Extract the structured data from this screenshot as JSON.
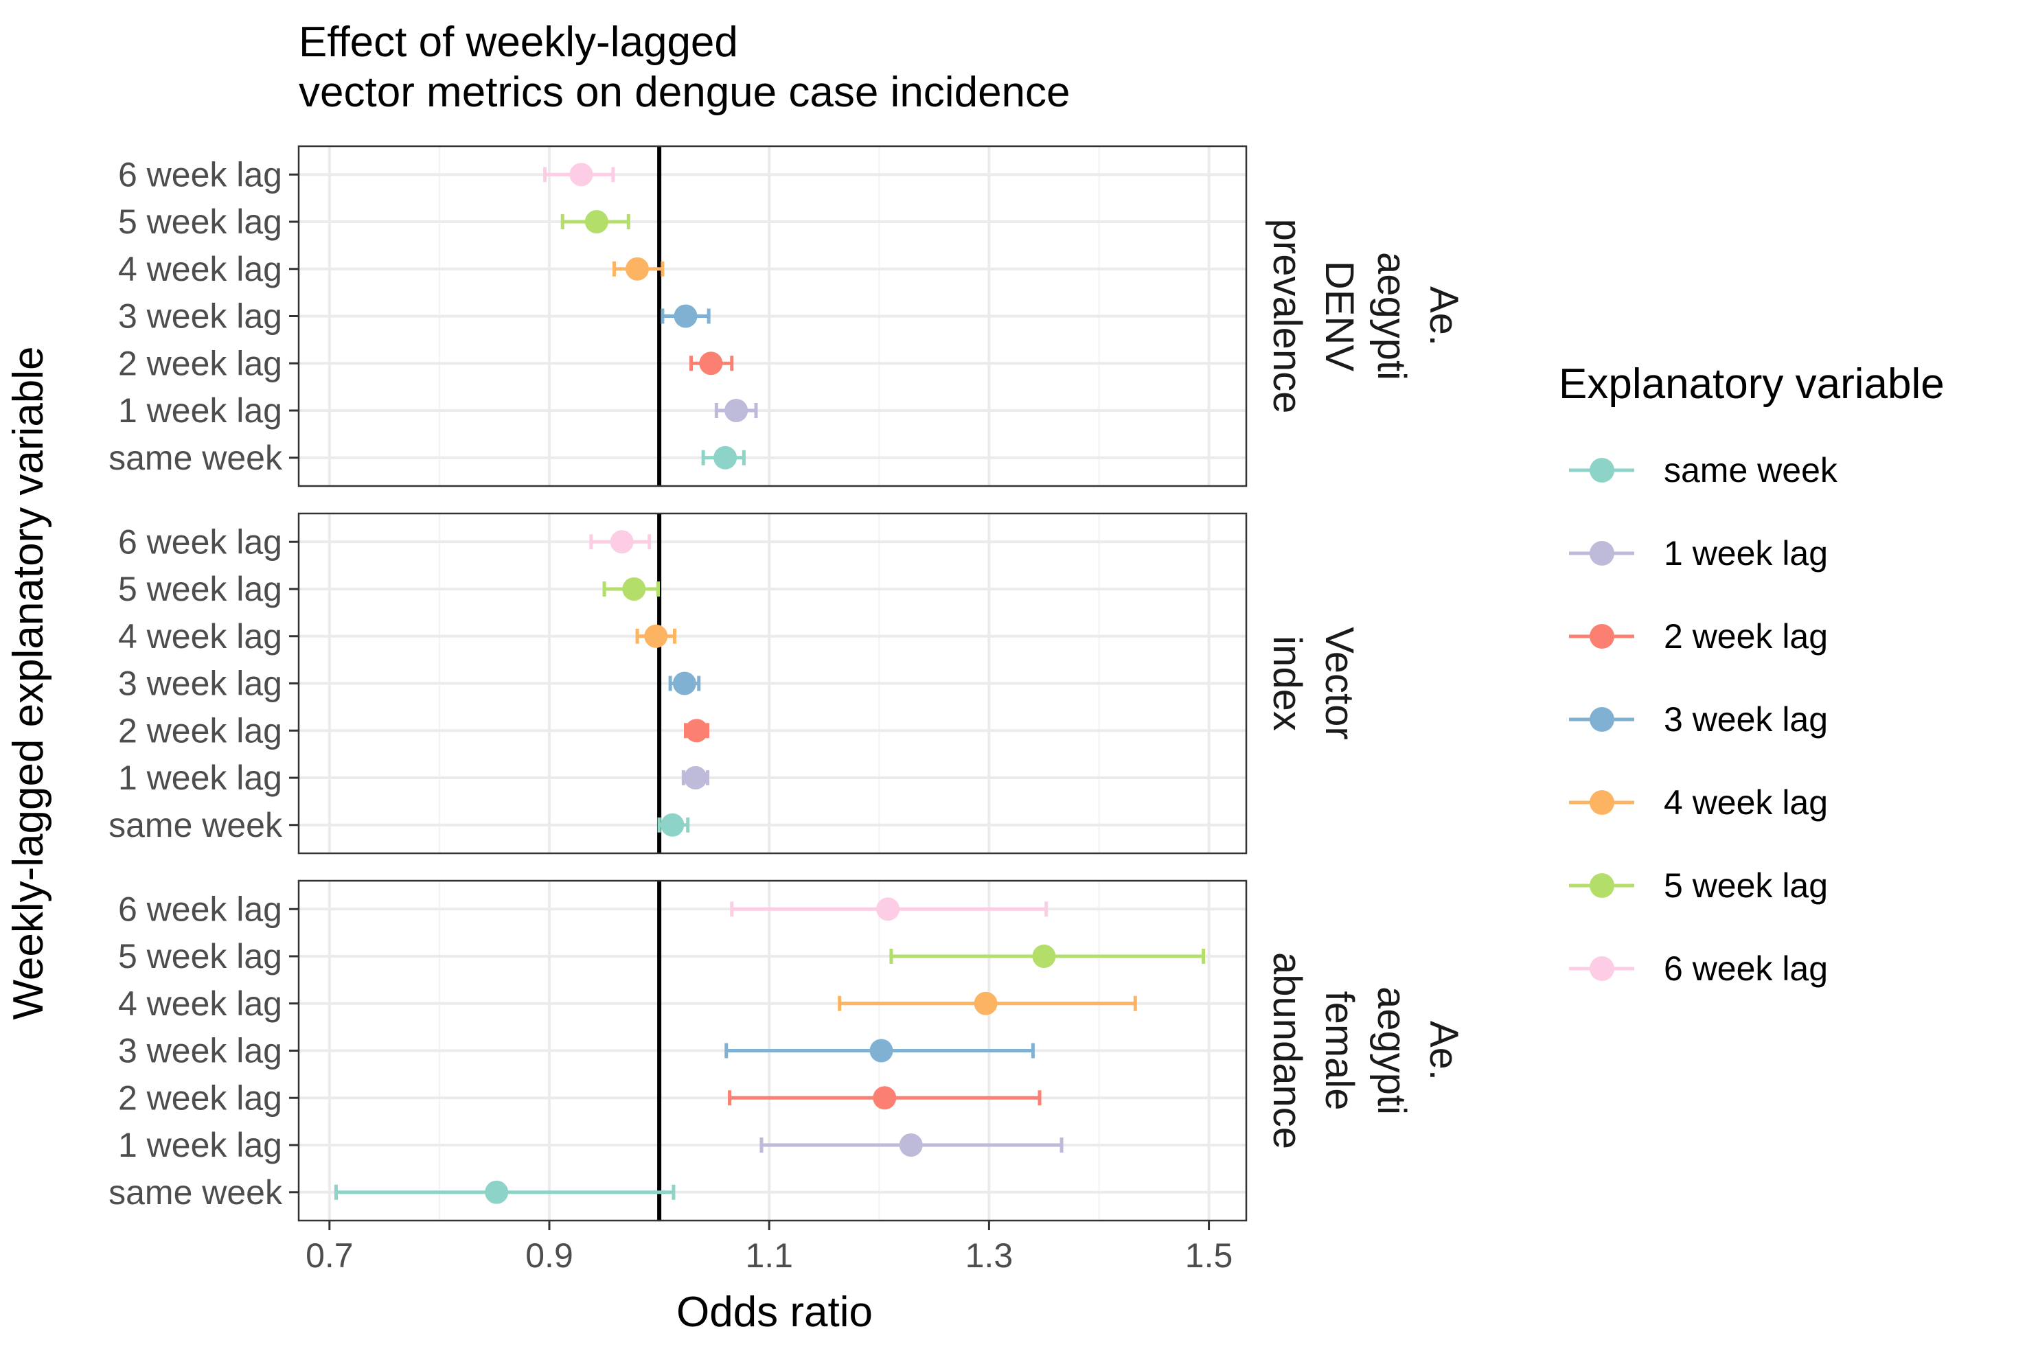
{
  "chart_data": {
    "type": "scatter",
    "subtype": "forest-plot",
    "title_lines": [
      "Effect of weekly-lagged",
      "vector metrics on dengue case incidence"
    ],
    "xlabel": "Odds ratio",
    "ylabel": "Weekly-lagged explanatory variable",
    "xlim": [
      0.672,
      1.534
    ],
    "xticks": [
      0.7,
      0.9,
      1.1,
      1.3,
      1.5
    ],
    "xtick_labels": [
      "0.7",
      "0.9",
      "1.1",
      "1.3",
      "1.5"
    ],
    "reference_line": 1.0,
    "grid": true,
    "legend_position": "right",
    "legend_title": "Explanatory variable",
    "categories": [
      "same week",
      "1 week lag",
      "2 week lag",
      "3 week lag",
      "4 week lag",
      "5 week lag",
      "6 week lag"
    ],
    "colors": {
      "same week": "#8DD3C7",
      "1 week lag": "#BEBADA",
      "2 week lag": "#FB8072",
      "3 week lag": "#80B1D3",
      "4 week lag": "#FDB462",
      "5 week lag": "#B3DE69",
      "6 week lag": "#FCCDE5"
    },
    "panels": [
      {
        "strip_lines": [
          "Ae.",
          "aegypti",
          "DENV",
          "prevalence"
        ],
        "points": [
          {
            "category": "same week",
            "estimate": 1.06,
            "lower": 1.04,
            "upper": 1.077
          },
          {
            "category": "1 week lag",
            "estimate": 1.07,
            "lower": 1.052,
            "upper": 1.088
          },
          {
            "category": "2 week lag",
            "estimate": 1.047,
            "lower": 1.029,
            "upper": 1.066
          },
          {
            "category": "3 week lag",
            "estimate": 1.024,
            "lower": 1.003,
            "upper": 1.045
          },
          {
            "category": "4 week lag",
            "estimate": 0.98,
            "lower": 0.959,
            "upper": 1.003
          },
          {
            "category": "5 week lag",
            "estimate": 0.943,
            "lower": 0.912,
            "upper": 0.972
          },
          {
            "category": "6 week lag",
            "estimate": 0.929,
            "lower": 0.896,
            "upper": 0.958
          }
        ]
      },
      {
        "strip_lines": [
          "Vector",
          "index"
        ],
        "points": [
          {
            "category": "same week",
            "estimate": 1.012,
            "lower": 1.0,
            "upper": 1.026
          },
          {
            "category": "1 week lag",
            "estimate": 1.033,
            "lower": 1.022,
            "upper": 1.044
          },
          {
            "category": "2 week lag",
            "estimate": 1.034,
            "lower": 1.024,
            "upper": 1.044
          },
          {
            "category": "3 week lag",
            "estimate": 1.023,
            "lower": 1.01,
            "upper": 1.036
          },
          {
            "category": "4 week lag",
            "estimate": 0.997,
            "lower": 0.98,
            "upper": 1.014
          },
          {
            "category": "5 week lag",
            "estimate": 0.977,
            "lower": 0.95,
            "upper": 0.999
          },
          {
            "category": "6 week lag",
            "estimate": 0.966,
            "lower": 0.938,
            "upper": 0.991
          }
        ]
      },
      {
        "strip_lines": [
          "Ae.",
          "aegypti",
          "female",
          "abundance"
        ],
        "points": [
          {
            "category": "same week",
            "estimate": 0.852,
            "lower": 0.706,
            "upper": 1.013
          },
          {
            "category": "1 week lag",
            "estimate": 1.229,
            "lower": 1.093,
            "upper": 1.366
          },
          {
            "category": "2 week lag",
            "estimate": 1.205,
            "lower": 1.064,
            "upper": 1.346
          },
          {
            "category": "3 week lag",
            "estimate": 1.202,
            "lower": 1.061,
            "upper": 1.34
          },
          {
            "category": "4 week lag",
            "estimate": 1.297,
            "lower": 1.164,
            "upper": 1.433
          },
          {
            "category": "5 week lag",
            "estimate": 1.35,
            "lower": 1.211,
            "upper": 1.495
          },
          {
            "category": "6 week lag",
            "estimate": 1.208,
            "lower": 1.066,
            "upper": 1.352
          }
        ]
      }
    ]
  }
}
